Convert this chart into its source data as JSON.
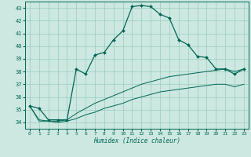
{
  "xlabel": "Humidex (Indice chaleur)",
  "bg_color": "#cce8e0",
  "grid_color": "#99ccbb",
  "line_color": "#006655",
  "xlim": [
    -0.5,
    23.5
  ],
  "ylim": [
    33.5,
    43.5
  ],
  "xticks": [
    0,
    1,
    2,
    3,
    4,
    5,
    6,
    7,
    8,
    9,
    10,
    11,
    12,
    13,
    14,
    15,
    16,
    17,
    18,
    19,
    20,
    21,
    22,
    23
  ],
  "yticks": [
    34,
    35,
    36,
    37,
    38,
    39,
    40,
    41,
    42,
    43
  ],
  "series1": [
    35.3,
    35.1,
    34.2,
    34.2,
    34.2,
    38.2,
    37.8,
    39.3,
    39.5,
    40.5,
    41.2,
    43.1,
    43.2,
    43.1,
    42.5,
    42.2,
    40.5,
    40.1,
    39.2,
    39.1,
    38.2,
    38.2,
    37.8,
    38.2
  ],
  "series2": [
    35.3,
    34.2,
    34.1,
    34.1,
    34.2,
    34.7,
    35.1,
    35.5,
    35.8,
    36.1,
    36.4,
    36.7,
    37.0,
    37.2,
    37.4,
    37.6,
    37.7,
    37.8,
    37.9,
    38.0,
    38.1,
    38.2,
    38.0,
    38.2
  ],
  "series3": [
    35.3,
    34.1,
    34.1,
    34.0,
    34.1,
    34.3,
    34.6,
    34.8,
    35.1,
    35.3,
    35.5,
    35.8,
    36.0,
    36.2,
    36.4,
    36.5,
    36.6,
    36.7,
    36.8,
    36.9,
    37.0,
    37.0,
    36.8,
    37.0
  ]
}
